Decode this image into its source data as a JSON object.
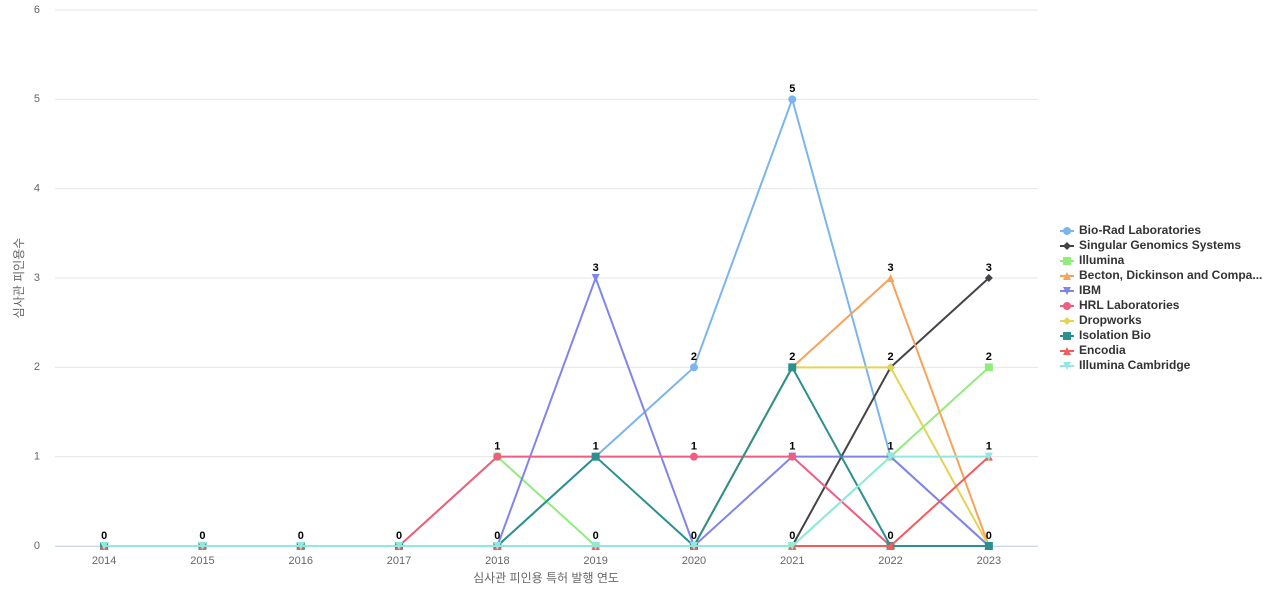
{
  "chart_data": {
    "type": "line",
    "xlabel": "심사관 피인용 특허 발행 연도",
    "ylabel": "심사관 피인용수",
    "categories": [
      "2014",
      "2015",
      "2016",
      "2017",
      "2018",
      "2019",
      "2020",
      "2021",
      "2022",
      "2023"
    ],
    "ylim": [
      0,
      6
    ],
    "yticks": [
      0,
      1,
      2,
      3,
      4,
      5,
      6
    ],
    "grid": true,
    "legend": "right",
    "data_labels": true,
    "series": [
      {
        "name": "Bio-Rad Laboratories",
        "color": "#7cb5ec",
        "marker": "circle",
        "values": [
          0,
          0,
          0,
          0,
          0,
          1,
          2,
          5,
          1,
          0
        ]
      },
      {
        "name": "Singular Genomics Systems",
        "color": "#434348",
        "marker": "diamond",
        "values": [
          0,
          0,
          0,
          0,
          0,
          0,
          0,
          0,
          2,
          3
        ]
      },
      {
        "name": "Illumina",
        "color": "#90ed7d",
        "marker": "square",
        "values": [
          0,
          0,
          0,
          0,
          1,
          0,
          0,
          0,
          1,
          2
        ]
      },
      {
        "name": "Becton, Dickinson and Compa...",
        "color": "#f7a35c",
        "marker": "triangle",
        "values": [
          0,
          0,
          0,
          0,
          0,
          0,
          0,
          2,
          3,
          0
        ]
      },
      {
        "name": "IBM",
        "color": "#8085e9",
        "marker": "triangle-down",
        "values": [
          0,
          0,
          0,
          0,
          0,
          3,
          0,
          1,
          1,
          0
        ]
      },
      {
        "name": "HRL Laboratories",
        "color": "#f15c80",
        "marker": "circle",
        "values": [
          0,
          0,
          0,
          0,
          1,
          1,
          1,
          1,
          0,
          0
        ]
      },
      {
        "name": "Dropworks",
        "color": "#e4d354",
        "marker": "diamond",
        "values": [
          0,
          0,
          0,
          0,
          0,
          0,
          0,
          2,
          2,
          0
        ]
      },
      {
        "name": "Isolation Bio",
        "color": "#2b908f",
        "marker": "square",
        "values": [
          0,
          0,
          0,
          0,
          0,
          1,
          0,
          2,
          0,
          0
        ]
      },
      {
        "name": "Encodia",
        "color": "#f45b5b",
        "marker": "triangle",
        "values": [
          0,
          0,
          0,
          0,
          0,
          0,
          0,
          0,
          0,
          1
        ]
      },
      {
        "name": "Illumina Cambridge",
        "color": "#91e8e1",
        "marker": "triangle-down",
        "values": [
          0,
          0,
          0,
          0,
          0,
          0,
          0,
          0,
          1,
          1
        ]
      }
    ]
  }
}
